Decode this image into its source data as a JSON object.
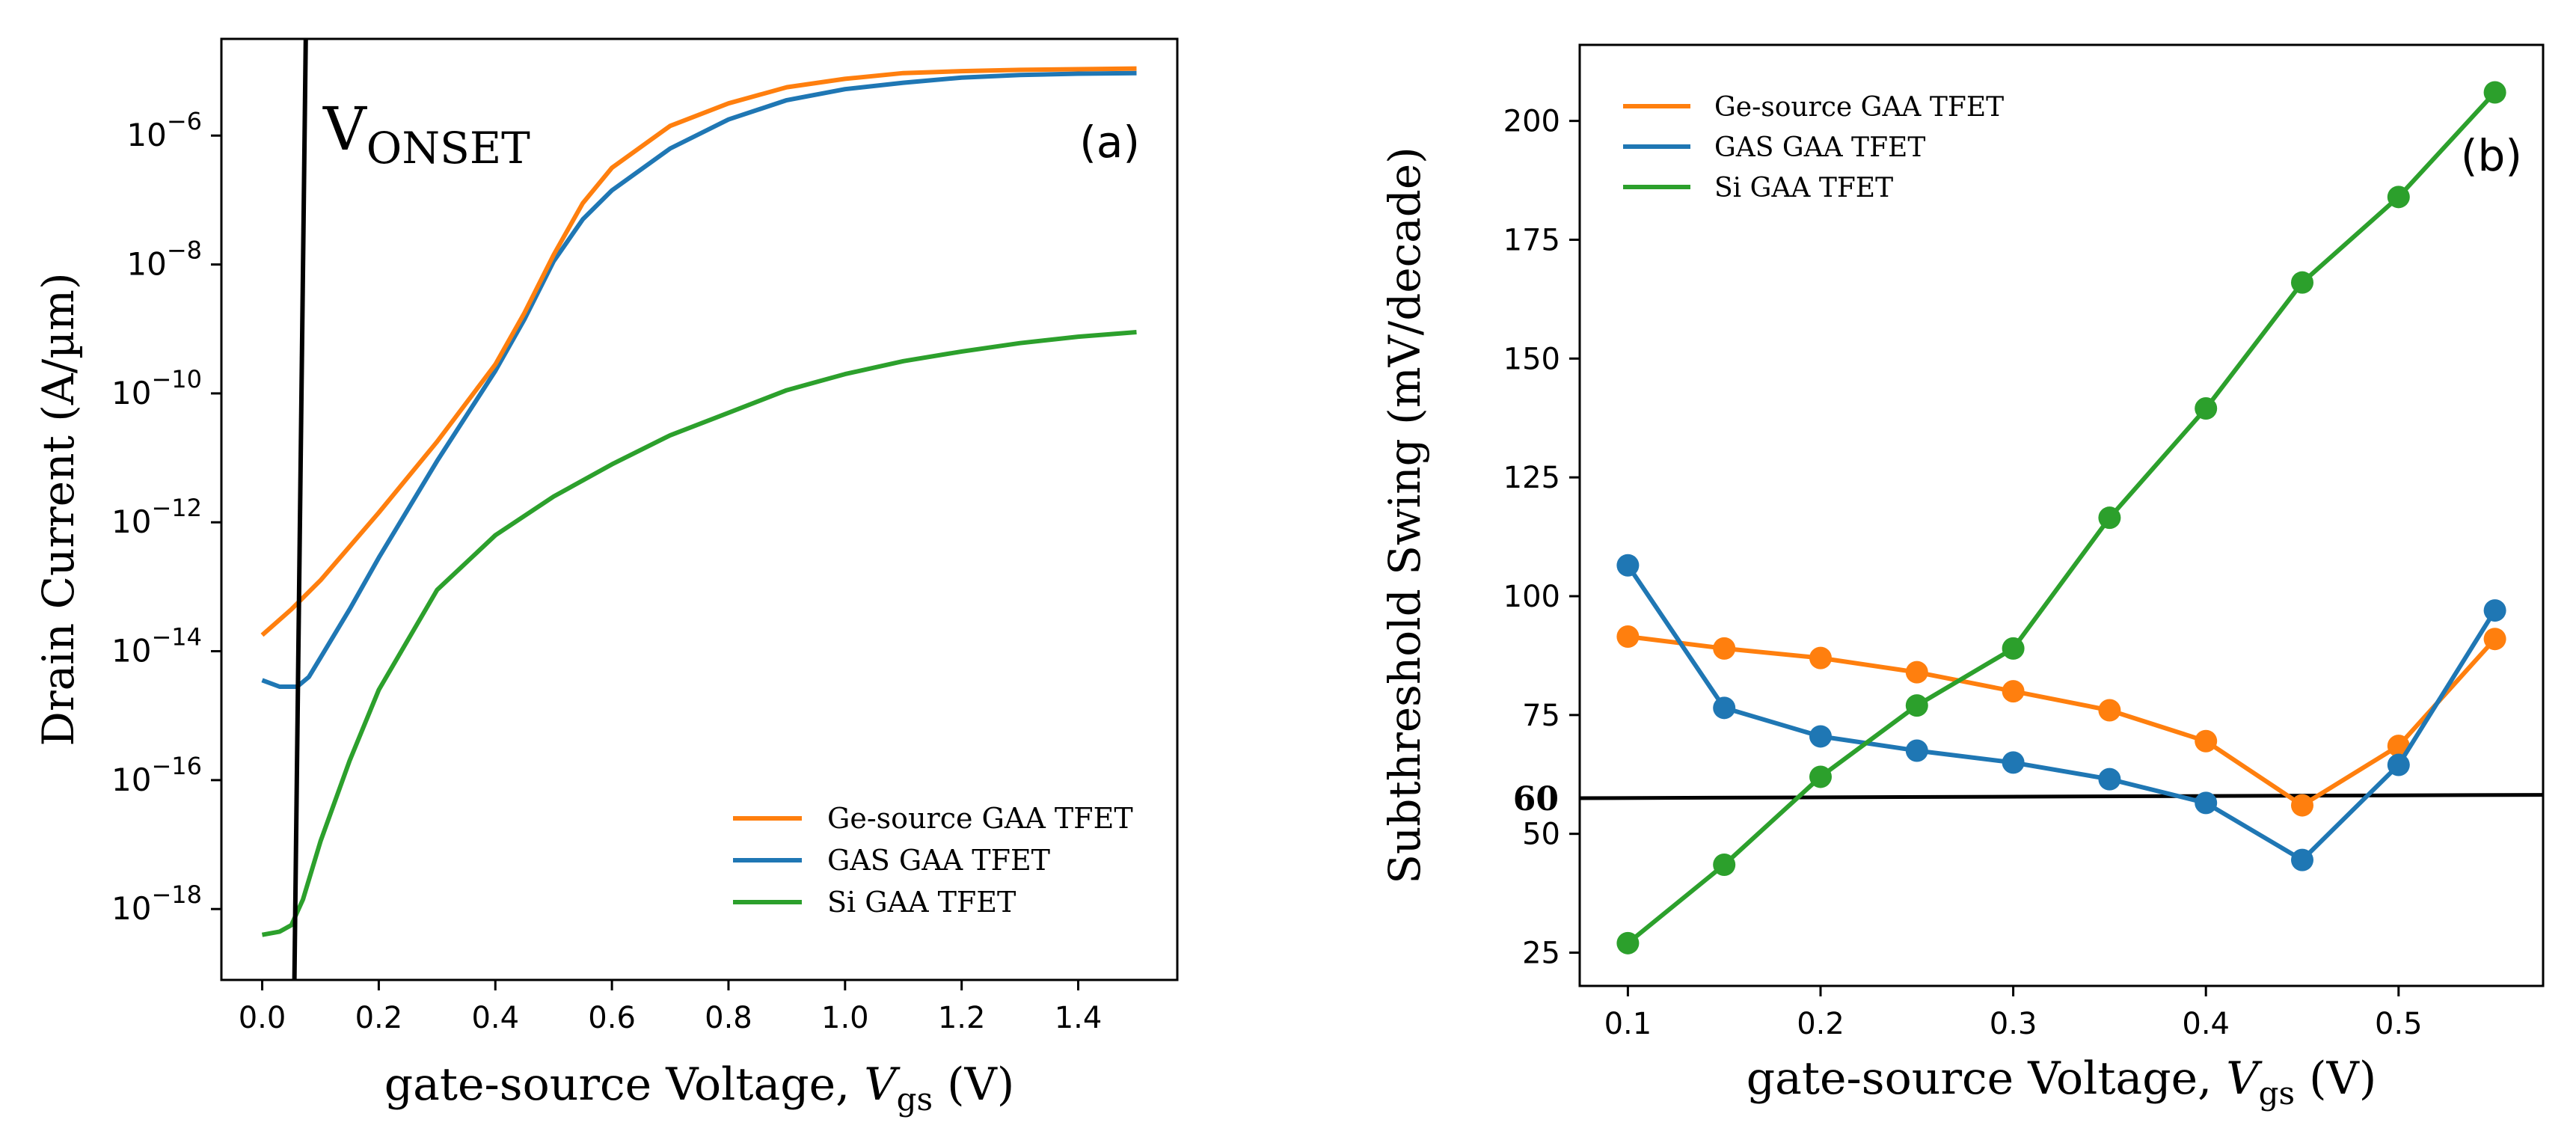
{
  "colors": {
    "orange": "#ff7f0e",
    "blue": "#1f77b4",
    "green": "#2ca02c",
    "black": "#000000",
    "frame": "#000000"
  },
  "chart_data": [
    {
      "type": "line",
      "panel_label": "(a)",
      "xlabel": "gate-source Voltage, ",
      "xlabel_sym": "V",
      "xlabel_sub": "gs",
      "xlabel_unit": " (V)",
      "ylabel": "Drain Current (A/µm)",
      "xlim": [
        -0.07,
        1.57
      ],
      "ylim": [
        -19.1,
        -4.5
      ],
      "yscale": "log",
      "xticks": [
        0.0,
        0.2,
        0.4,
        0.6,
        0.8,
        1.0,
        1.2,
        1.4
      ],
      "xtick_labels": [
        "0.0",
        "0.2",
        "0.4",
        "0.6",
        "0.8",
        "1.0",
        "1.2",
        "1.4"
      ],
      "yticks_exp": [
        -18,
        -16,
        -14,
        -12,
        -10,
        -8,
        -6
      ],
      "ytick_base": "10",
      "ytick_exponents": [
        "−18",
        "−16",
        "−14",
        "−12",
        "−10",
        "−8",
        "−6"
      ],
      "annotation": {
        "main": "V",
        "sub": "ONSET"
      },
      "vonset_line": {
        "x1": 0.055,
        "y1": -19.3,
        "x2": 0.075,
        "y2": -4.3
      },
      "legend_loc": "lower-right",
      "series": [
        {
          "name": "Ge-source GAA TFET",
          "color": "orange",
          "x": [
            0.0,
            0.05,
            0.1,
            0.2,
            0.3,
            0.4,
            0.45,
            0.5,
            0.55,
            0.6,
            0.7,
            0.8,
            0.9,
            1.0,
            1.1,
            1.2,
            1.3,
            1.4,
            1.5
          ],
          "log10y": [
            -13.75,
            -13.35,
            -12.9,
            -11.85,
            -10.75,
            -9.55,
            -8.75,
            -7.85,
            -7.05,
            -6.5,
            -5.85,
            -5.5,
            -5.25,
            -5.12,
            -5.03,
            -5.0,
            -4.98,
            -4.97,
            -4.96
          ]
        },
        {
          "name": "GAS GAA TFET",
          "color": "blue",
          "x": [
            0.0,
            0.03,
            0.06,
            0.08,
            0.1,
            0.15,
            0.2,
            0.3,
            0.4,
            0.45,
            0.5,
            0.55,
            0.6,
            0.7,
            0.8,
            0.9,
            1.0,
            1.1,
            1.2,
            1.3,
            1.4,
            1.5
          ],
          "log10y": [
            -14.45,
            -14.55,
            -14.55,
            -14.4,
            -14.1,
            -13.35,
            -12.55,
            -11.05,
            -9.65,
            -8.85,
            -7.95,
            -7.3,
            -6.85,
            -6.2,
            -5.75,
            -5.45,
            -5.28,
            -5.18,
            -5.1,
            -5.06,
            -5.04,
            -5.03
          ]
        },
        {
          "name": "Si GAA TFET",
          "color": "green",
          "x": [
            0.0,
            0.03,
            0.05,
            0.07,
            0.1,
            0.15,
            0.2,
            0.3,
            0.4,
            0.5,
            0.6,
            0.7,
            0.8,
            0.9,
            1.0,
            1.1,
            1.2,
            1.3,
            1.4,
            1.5
          ],
          "log10y": [
            -18.4,
            -18.35,
            -18.25,
            -17.85,
            -16.95,
            -15.7,
            -14.6,
            -13.05,
            -12.2,
            -11.6,
            -11.1,
            -10.65,
            -10.3,
            -9.95,
            -9.7,
            -9.5,
            -9.35,
            -9.22,
            -9.12,
            -9.05
          ]
        }
      ]
    },
    {
      "type": "line",
      "panel_label": "(b)",
      "xlabel": "gate-source Voltage, ",
      "xlabel_sym": "V",
      "xlabel_sub": "gs",
      "xlabel_unit": " (V)",
      "ylabel": "Subthreshold Swing (mV/decade)",
      "xlim": [
        0.075,
        0.575
      ],
      "ylim": [
        18,
        216
      ],
      "xticks": [
        0.1,
        0.2,
        0.3,
        0.4,
        0.5
      ],
      "xtick_labels": [
        "0.1",
        "0.2",
        "0.3",
        "0.4",
        "0.5"
      ],
      "yticks": [
        25,
        50,
        75,
        100,
        125,
        150,
        175,
        200
      ],
      "ytick_labels": [
        "25",
        "50",
        "75",
        "100",
        "125",
        "150",
        "175",
        "200"
      ],
      "ref_line": {
        "label": "60",
        "y_start": 57.5,
        "y_end": 58.2
      },
      "legend_loc": "upper-left",
      "series": [
        {
          "name": "Ge-source GAA TFET",
          "color": "orange",
          "x": [
            0.1,
            0.15,
            0.2,
            0.25,
            0.3,
            0.35,
            0.4,
            0.45,
            0.5,
            0.55
          ],
          "y": [
            91.5,
            89,
            87,
            84,
            80,
            76,
            69.5,
            56,
            68.5,
            91
          ]
        },
        {
          "name": "GAS GAA TFET",
          "color": "blue",
          "x": [
            0.1,
            0.15,
            0.2,
            0.25,
            0.3,
            0.35,
            0.4,
            0.45,
            0.5,
            0.55
          ],
          "y": [
            106.5,
            76.5,
            70.5,
            67.5,
            65,
            61.5,
            56.5,
            44.5,
            64.5,
            97
          ]
        },
        {
          "name": "Si GAA TFET",
          "color": "green",
          "x": [
            0.1,
            0.15,
            0.2,
            0.25,
            0.3,
            0.35,
            0.4,
            0.45,
            0.5,
            0.55
          ],
          "y": [
            27,
            43.5,
            62,
            77,
            89,
            116.5,
            139.5,
            166,
            184,
            206
          ]
        }
      ]
    }
  ]
}
